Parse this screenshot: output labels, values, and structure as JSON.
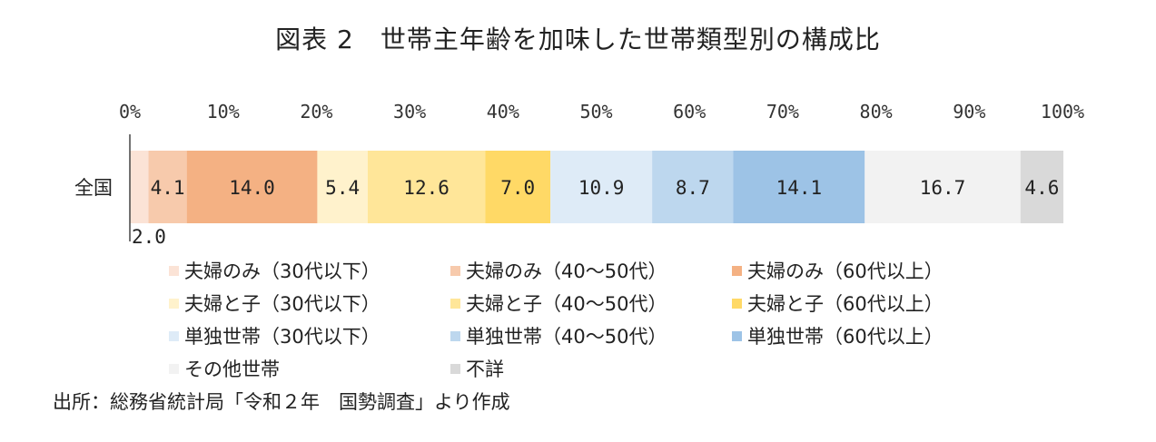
{
  "title": "図表 2　世帯主年齢を加味した世帯類型別の構成比",
  "source": "出所：総務省統計局「令和２年　国勢調査」より作成",
  "chart_data": {
    "type": "bar",
    "orientation": "horizontal-stacked-100",
    "categories": [
      "全国"
    ],
    "xlim": [
      0,
      100
    ],
    "x_ticks": [
      "0%",
      "10%",
      "20%",
      "30%",
      "40%",
      "50%",
      "60%",
      "70%",
      "80%",
      "90%",
      "100%"
    ],
    "tick_position": "top",
    "grid": false,
    "legend_position": "bottom",
    "series": [
      {
        "name": "夫婦のみ（30代以下）",
        "values": [
          2.0
        ],
        "label": "2.0",
        "color": "#fbe3d6"
      },
      {
        "name": "夫婦のみ（40～50代）",
        "values": [
          4.1
        ],
        "label": "4.1",
        "color": "#f7caac"
      },
      {
        "name": "夫婦のみ（60代以上）",
        "values": [
          14.0
        ],
        "label": "14.0",
        "color": "#f4b183"
      },
      {
        "name": "夫婦と子（30代以下）",
        "values": [
          5.4
        ],
        "label": "5.4",
        "color": "#fff2cc"
      },
      {
        "name": "夫婦と子（40～50代）",
        "values": [
          12.6
        ],
        "label": "12.6",
        "color": "#ffe699"
      },
      {
        "name": "夫婦と子（60代以上）",
        "values": [
          7.0
        ],
        "label": "7.0",
        "color": "#ffd966"
      },
      {
        "name": "単独世帯（30代以下）",
        "values": [
          10.9
        ],
        "label": "10.9",
        "color": "#deebf7"
      },
      {
        "name": "単独世帯（40～50代）",
        "values": [
          8.7
        ],
        "label": "8.7",
        "color": "#bdd7ee"
      },
      {
        "name": "単独世帯（60代以上）",
        "values": [
          14.1
        ],
        "label": "14.1",
        "color": "#9dc3e6"
      },
      {
        "name": "その他世帯",
        "values": [
          16.7
        ],
        "label": "16.7",
        "color": "#f2f2f2"
      },
      {
        "name": "不詳",
        "values": [
          4.6
        ],
        "label": "4.6",
        "color": "#d9d9d9"
      }
    ]
  }
}
